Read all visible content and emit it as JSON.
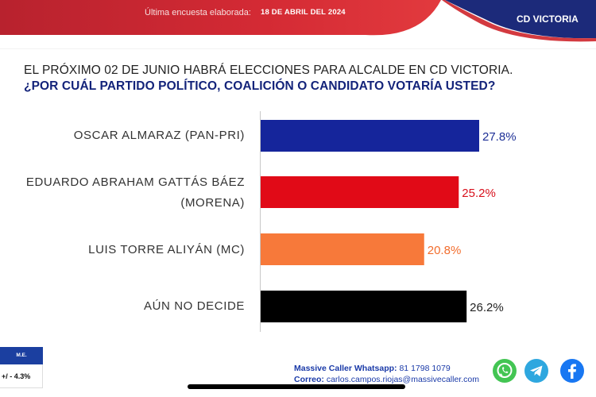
{
  "header": {
    "survey_label": "Última encuesta elaborada:",
    "survey_date": "18 DE ABRIL DEL 2024",
    "city": "CD VICTORIA"
  },
  "question": {
    "line1": "EL PRÓXIMO 02 DE JUNIO HABRÁ ELECCIONES PARA ALCALDE EN CD VICTORIA.",
    "line2": "¿POR CUÁL PARTIDO POLÍTICO, COALICIÓN O CANDIDATO VOTARÍA USTED?"
  },
  "chart_data": {
    "type": "bar",
    "orientation": "horizontal",
    "categories": [
      "OSCAR ALMARAZ (PAN-PRI)",
      "EDUARDO ABRAHAM GATTÁS BÁEZ (MORENA)",
      "LUIS TORRE ALIYÁN (MC)",
      "AÚN NO DECIDE"
    ],
    "category_lines": [
      [
        "OSCAR ALMARAZ (PAN-PRI)"
      ],
      [
        "EDUARDO ABRAHAM GATTÁS BÁEZ",
        "(MORENA)"
      ],
      [
        "LUIS TORRE ALIYÁN (MC)"
      ],
      [
        "AÚN NO DECIDE"
      ]
    ],
    "values": [
      27.8,
      25.2,
      20.8,
      26.2
    ],
    "labels": [
      "27.8%",
      "25.2%",
      "20.8%",
      "26.2%"
    ],
    "colors": [
      "#15259b",
      "#e10a17",
      "#f7793a",
      "#000000"
    ],
    "label_colors": [
      "#1d2f96",
      "#d8101c",
      "#f26d2d",
      "#222222"
    ],
    "xlim": [
      0,
      35
    ],
    "grid": false,
    "legend": "none"
  },
  "margin_error": {
    "label": "M.E.",
    "value": "+/ - 4.3%"
  },
  "contact": {
    "whatsapp_label": "Massive Caller Whatsapp:",
    "whatsapp_number": "81 1798 1079",
    "email_label": "Correo:",
    "email": "carlos.campos.riojas@massivecaller.com"
  },
  "social": {
    "icons": [
      "whatsapp-icon",
      "telegram-icon",
      "facebook-icon"
    ],
    "colors": [
      "#43c553",
      "#2ea7df",
      "#1877f2"
    ]
  }
}
